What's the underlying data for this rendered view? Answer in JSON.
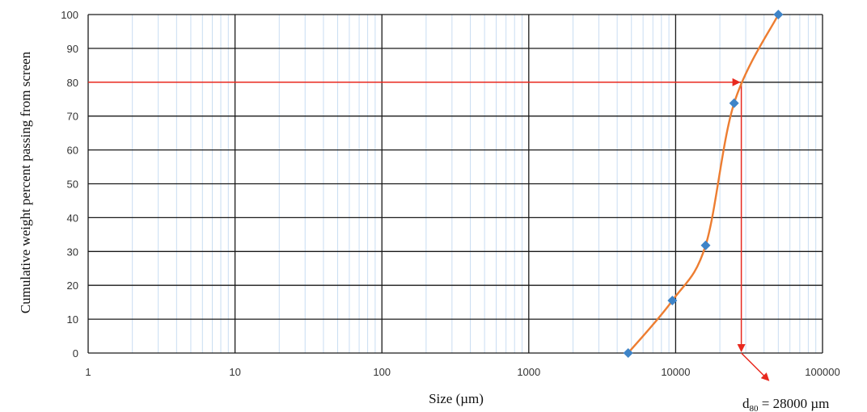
{
  "chart_data": {
    "type": "scatter",
    "title": "",
    "xlabel": "Size (µm)",
    "ylabel": "Cumulative weight percent passing from screen",
    "x_scale": "log",
    "xlim": [
      1,
      100000
    ],
    "ylim": [
      0,
      100
    ],
    "x_ticks": [
      "1",
      "10",
      "100",
      "1000",
      "10000",
      "100000"
    ],
    "y_ticks": [
      "0",
      "10",
      "20",
      "30",
      "40",
      "50",
      "60",
      "70",
      "80",
      "90",
      "100"
    ],
    "grid": true,
    "legend": "none",
    "series": [
      {
        "x": [
          4750,
          9500,
          16000,
          25000,
          50000
        ],
        "y": [
          0,
          15.5,
          31.8,
          73.8,
          100
        ],
        "line_color": "#ED7D31",
        "marker_color": "#3E84C8",
        "marker": "diamond",
        "smooth": true
      }
    ],
    "annotations": [
      {
        "text_main": "d",
        "text_sub": "80",
        "text_rest": " = 28000 µm",
        "y_value": 80,
        "x_value": 28000,
        "arrow_color": "#E8281E"
      }
    ]
  }
}
